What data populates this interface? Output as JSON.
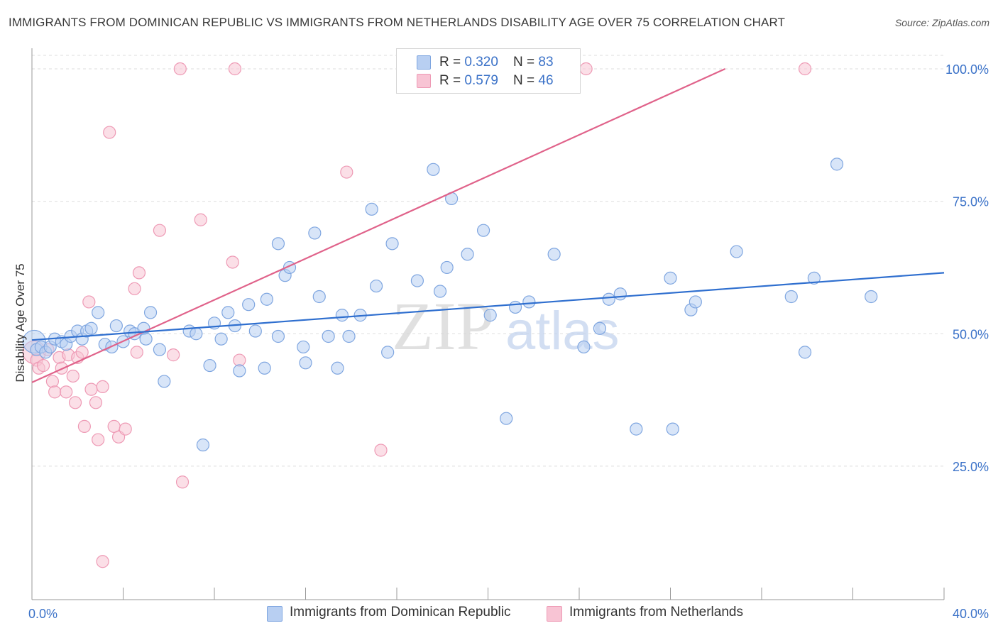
{
  "title": "IMMIGRANTS FROM DOMINICAN REPUBLIC VS IMMIGRANTS FROM NETHERLANDS DISABILITY AGE OVER 75 CORRELATION CHART",
  "source": "Source: ZipAtlas.com",
  "watermark": {
    "zip": "ZIP",
    "atlas": "atlas"
  },
  "legend": {
    "rows": [
      {
        "r_label": "R = ",
        "r_value": "0.320",
        "n_label": "N = ",
        "n_value": "83"
      },
      {
        "r_label": "R = ",
        "r_value": "0.579",
        "n_label": "N = ",
        "n_value": "46"
      }
    ]
  },
  "bottom_legend": {
    "series1": "Immigrants from Dominican Republic",
    "series2": "Immigrants from Netherlands"
  },
  "colors": {
    "blue_fill": "#b8cff2",
    "blue_stroke": "#7fa6e0",
    "blue_line": "#2f6fcf",
    "pink_fill": "#f8c4d4",
    "pink_stroke": "#ee9ab5",
    "pink_line": "#e0628a",
    "tick_text": "#3b72c8",
    "grid": "#dddddd"
  },
  "chart_data": {
    "type": "scatter",
    "xlabel": "",
    "ylabel": "Disability Age Over 75",
    "xlim": [
      0,
      40
    ],
    "ylim": [
      0,
      102
    ],
    "x_tick_labels": [
      {
        "x": 0,
        "label": "0.0%"
      },
      {
        "x": 40,
        "label": "40.0%"
      }
    ],
    "y_tick_labels": [
      {
        "y": 25,
        "label": "25.0%"
      },
      {
        "y": 50,
        "label": "50.0%"
      },
      {
        "y": 75,
        "label": "75.0%"
      },
      {
        "y": 100,
        "label": "100.0%"
      }
    ],
    "series": [
      {
        "name": "Immigrants from Dominican Republic",
        "color": "blue",
        "trendline": {
          "x": [
            0,
            40
          ],
          "y": [
            48.8,
            61.5
          ]
        },
        "points": [
          [
            0.1,
            48.5
          ],
          [
            0.2,
            47.0
          ],
          [
            0.4,
            47.5
          ],
          [
            0.6,
            46.5
          ],
          [
            0.8,
            47.5
          ],
          [
            1.0,
            49.0
          ],
          [
            1.3,
            48.5
          ],
          [
            1.5,
            48.0
          ],
          [
            1.7,
            49.5
          ],
          [
            2.0,
            50.5
          ],
          [
            2.2,
            49.0
          ],
          [
            2.4,
            50.5
          ],
          [
            2.6,
            51.0
          ],
          [
            2.9,
            54.0
          ],
          [
            3.2,
            48.0
          ],
          [
            3.5,
            47.5
          ],
          [
            3.7,
            51.5
          ],
          [
            4.0,
            48.5
          ],
          [
            4.3,
            50.5
          ],
          [
            4.5,
            50.0
          ],
          [
            4.9,
            51.0
          ],
          [
            5.0,
            49.0
          ],
          [
            5.2,
            54.0
          ],
          [
            5.6,
            47.0
          ],
          [
            5.8,
            41.0
          ],
          [
            6.9,
            50.5
          ],
          [
            7.2,
            50.0
          ],
          [
            7.5,
            29.0
          ],
          [
            7.8,
            44.0
          ],
          [
            8.0,
            52.0
          ],
          [
            8.3,
            49.0
          ],
          [
            8.6,
            54.0
          ],
          [
            8.9,
            51.5
          ],
          [
            9.1,
            43.0
          ],
          [
            9.5,
            55.5
          ],
          [
            9.8,
            50.5
          ],
          [
            10.2,
            43.5
          ],
          [
            10.3,
            56.5
          ],
          [
            10.8,
            49.5
          ],
          [
            10.8,
            67.0
          ],
          [
            11.1,
            61.0
          ],
          [
            11.3,
            62.5
          ],
          [
            11.9,
            47.5
          ],
          [
            12.0,
            44.5
          ],
          [
            12.4,
            69.0
          ],
          [
            12.6,
            57.0
          ],
          [
            13.0,
            49.5
          ],
          [
            13.4,
            43.5
          ],
          [
            13.6,
            53.5
          ],
          [
            13.9,
            49.5
          ],
          [
            14.4,
            53.5
          ],
          [
            14.9,
            73.5
          ],
          [
            15.1,
            59.0
          ],
          [
            15.6,
            46.5
          ],
          [
            15.8,
            67.0
          ],
          [
            16.9,
            60.0
          ],
          [
            17.6,
            81.0
          ],
          [
            17.9,
            58.0
          ],
          [
            18.2,
            62.5
          ],
          [
            18.4,
            75.5
          ],
          [
            19.1,
            65.0
          ],
          [
            19.8,
            69.5
          ],
          [
            20.1,
            53.5
          ],
          [
            20.8,
            34.0
          ],
          [
            21.2,
            55.0
          ],
          [
            21.8,
            56.0
          ],
          [
            22.9,
            65.0
          ],
          [
            24.2,
            47.5
          ],
          [
            24.9,
            51.0
          ],
          [
            25.3,
            56.5
          ],
          [
            25.8,
            57.5
          ],
          [
            26.5,
            32.0
          ],
          [
            28.0,
            60.5
          ],
          [
            28.1,
            32.0
          ],
          [
            28.9,
            54.5
          ],
          [
            29.1,
            56.0
          ],
          [
            30.9,
            65.5
          ],
          [
            33.3,
            57.0
          ],
          [
            33.9,
            46.5
          ],
          [
            34.3,
            60.5
          ],
          [
            35.3,
            82.0
          ],
          [
            36.8,
            57.0
          ]
        ]
      },
      {
        "name": "Immigrants from Netherlands",
        "color": "pink",
        "trendline": {
          "x": [
            0,
            30.4
          ],
          "y": [
            40.8,
            100.0
          ]
        },
        "points": [
          [
            0.1,
            46.5
          ],
          [
            0.2,
            45.0
          ],
          [
            0.3,
            43.5
          ],
          [
            0.5,
            44.0
          ],
          [
            0.7,
            47.0
          ],
          [
            0.9,
            41.0
          ],
          [
            1.0,
            39.0
          ],
          [
            1.2,
            45.5
          ],
          [
            1.3,
            43.5
          ],
          [
            1.5,
            39.0
          ],
          [
            1.6,
            46.0
          ],
          [
            1.8,
            42.0
          ],
          [
            1.9,
            37.0
          ],
          [
            2.0,
            45.5
          ],
          [
            2.2,
            46.5
          ],
          [
            2.3,
            32.5
          ],
          [
            2.5,
            56.0
          ],
          [
            2.6,
            39.5
          ],
          [
            2.8,
            37.0
          ],
          [
            2.9,
            30.0
          ],
          [
            3.1,
            40.0
          ],
          [
            3.1,
            7.0
          ],
          [
            3.4,
            88.0
          ],
          [
            3.6,
            32.5
          ],
          [
            3.8,
            30.5
          ],
          [
            4.1,
            32.0
          ],
          [
            4.5,
            58.5
          ],
          [
            4.6,
            46.5
          ],
          [
            4.7,
            61.5
          ],
          [
            5.6,
            69.5
          ],
          [
            6.2,
            46.0
          ],
          [
            6.5,
            100.0
          ],
          [
            6.6,
            22.0
          ],
          [
            7.4,
            71.5
          ],
          [
            8.8,
            63.5
          ],
          [
            8.9,
            100.0
          ],
          [
            9.1,
            45.0
          ],
          [
            13.8,
            80.5
          ],
          [
            15.3,
            28.0
          ],
          [
            24.3,
            100.0
          ],
          [
            33.9,
            100.0
          ]
        ]
      }
    ]
  }
}
